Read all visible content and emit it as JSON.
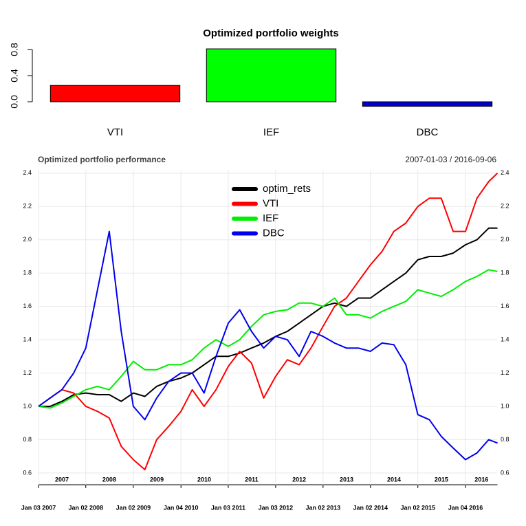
{
  "chart_data": [
    {
      "type": "bar",
      "title": "Optimized portfolio weights",
      "categories": [
        "VTI",
        "IEF",
        "DBC"
      ],
      "values": [
        0.25,
        0.81,
        -0.07
      ],
      "colors": [
        "#ff0000",
        "#00ff00",
        "#0000cd"
      ],
      "ylim": [
        -0.1,
        0.85
      ],
      "yticks": [
        {
          "value": 0,
          "label": "0.0"
        },
        0.4,
        0.8
      ]
    },
    {
      "type": "line",
      "title": "Optimized portfolio performance",
      "subtitle": "2007-01-03 / 2016-09-06",
      "x": [
        "2007-01-03",
        "2007-04-02",
        "2007-07-02",
        "2007-10-01",
        "2008-01-02",
        "2008-04-01",
        "2008-07-01",
        "2008-10-01",
        "2009-01-02",
        "2009-04-01",
        "2009-07-01",
        "2009-10-01",
        "2010-01-04",
        "2010-04-01",
        "2010-07-01",
        "2010-10-01",
        "2011-01-03",
        "2011-04-01",
        "2011-07-01",
        "2011-10-03",
        "2012-01-03",
        "2012-04-02",
        "2012-07-02",
        "2012-10-01",
        "2013-01-02",
        "2013-04-01",
        "2013-07-01",
        "2013-10-01",
        "2014-01-02",
        "2014-04-01",
        "2014-07-01",
        "2014-10-01",
        "2015-01-02",
        "2015-04-01",
        "2015-07-01",
        "2015-10-01",
        "2016-01-04",
        "2016-04-01",
        "2016-07-01",
        "2016-09-06"
      ],
      "series": [
        {
          "name": "optim_rets",
          "color": "#000000",
          "values": [
            1.0,
            1.0,
            1.03,
            1.07,
            1.08,
            1.07,
            1.07,
            1.03,
            1.08,
            1.06,
            1.12,
            1.15,
            1.17,
            1.2,
            1.25,
            1.3,
            1.3,
            1.32,
            1.35,
            1.38,
            1.42,
            1.45,
            1.5,
            1.55,
            1.6,
            1.62,
            1.6,
            1.65,
            1.65,
            1.7,
            1.75,
            1.8,
            1.88,
            1.9,
            1.9,
            1.92,
            1.97,
            2.0,
            2.07,
            2.07
          ]
        },
        {
          "name": "VTI",
          "color": "#ff0000",
          "values": [
            1.0,
            1.05,
            1.1,
            1.08,
            1.0,
            0.97,
            0.93,
            0.76,
            0.68,
            0.62,
            0.8,
            0.88,
            0.97,
            1.1,
            1.0,
            1.1,
            1.24,
            1.33,
            1.26,
            1.05,
            1.18,
            1.28,
            1.25,
            1.35,
            1.48,
            1.6,
            1.65,
            1.75,
            1.85,
            1.93,
            2.05,
            2.1,
            2.2,
            2.25,
            2.25,
            2.05,
            2.05,
            2.25,
            2.35,
            2.4
          ]
        },
        {
          "name": "IEF",
          "color": "#00ee00",
          "values": [
            1.0,
            0.99,
            1.02,
            1.06,
            1.1,
            1.12,
            1.1,
            1.18,
            1.27,
            1.22,
            1.22,
            1.25,
            1.25,
            1.28,
            1.35,
            1.4,
            1.36,
            1.4,
            1.48,
            1.55,
            1.57,
            1.58,
            1.62,
            1.62,
            1.6,
            1.65,
            1.55,
            1.55,
            1.53,
            1.57,
            1.6,
            1.63,
            1.7,
            1.68,
            1.66,
            1.7,
            1.75,
            1.78,
            1.82,
            1.81
          ]
        },
        {
          "name": "DBC",
          "color": "#0000ee",
          "values": [
            1.0,
            1.05,
            1.1,
            1.2,
            1.35,
            1.7,
            2.05,
            1.45,
            1.0,
            0.92,
            1.05,
            1.15,
            1.2,
            1.2,
            1.08,
            1.3,
            1.5,
            1.58,
            1.45,
            1.35,
            1.42,
            1.4,
            1.3,
            1.45,
            1.42,
            1.38,
            1.35,
            1.35,
            1.33,
            1.38,
            1.37,
            1.25,
            0.95,
            0.92,
            0.82,
            0.75,
            0.68,
            0.72,
            0.8,
            0.78
          ]
        }
      ],
      "xlim": [
        "2007-01-03",
        "2016-09-06"
      ],
      "xticks": [
        {
          "value": "2007-01-03",
          "label": "Jan 03 2007"
        },
        {
          "value": "2008-01-02",
          "label": "Jan 02 2008"
        },
        {
          "value": "2009-01-02",
          "label": "Jan 02 2009"
        },
        {
          "value": "2010-01-04",
          "label": "Jan 04 2010"
        },
        {
          "value": "2011-01-03",
          "label": "Jan 03 2011"
        },
        {
          "value": "2012-01-03",
          "label": "Jan 03 2012"
        },
        {
          "value": "2013-01-02",
          "label": "Jan 02 2013"
        },
        {
          "value": "2014-01-02",
          "label": "Jan 02 2014"
        },
        {
          "value": "2015-01-02",
          "label": "Jan 02 2015"
        },
        {
          "value": "2016-01-04",
          "label": "Jan 04 2016"
        }
      ],
      "year_labels": [
        {
          "value": "2007-07-02",
          "label": "2007"
        },
        {
          "value": "2008-07-01",
          "label": "2008"
        },
        {
          "value": "2009-07-02",
          "label": "2009"
        },
        {
          "value": "2010-07-02",
          "label": "2010"
        },
        {
          "value": "2011-07-02",
          "label": "2011"
        },
        {
          "value": "2012-07-02",
          "label": "2012"
        },
        {
          "value": "2013-07-02",
          "label": "2013"
        },
        {
          "value": "2014-07-02",
          "label": "2014"
        },
        {
          "value": "2015-07-02",
          "label": "2015"
        },
        {
          "value": "2016-05-06",
          "label": "2016"
        }
      ],
      "ylim": [
        0.55,
        2.42
      ],
      "yticks": [
        0.6,
        0.8,
        {
          "value": 1,
          "label": "1.0"
        },
        1.2,
        1.4,
        1.6,
        1.8,
        {
          "value": 2,
          "label": "2.0"
        },
        2.2,
        2.4
      ],
      "grid": true,
      "legend": "top"
    }
  ]
}
